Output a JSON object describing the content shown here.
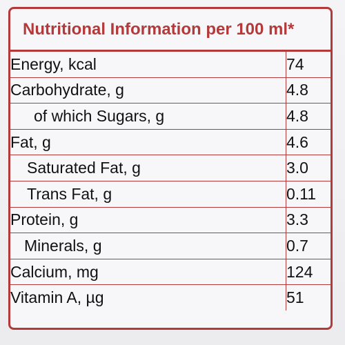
{
  "title": "Nutritional Information per 100 ml*",
  "rows": [
    {
      "label": "Energy, kcal",
      "value": "74"
    },
    {
      "label": "Carbohydrate, g",
      "value": "4.8"
    },
    {
      "label": "of which Sugars, g",
      "value": "4.8"
    },
    {
      "label": "Fat, g",
      "value": "4.6"
    },
    {
      "label": "Saturated Fat, g",
      "value": "3.0"
    },
    {
      "label": "Trans Fat, g",
      "value": "0.11"
    },
    {
      "label": "Protein, g",
      "value": "3.3"
    },
    {
      "label": "Minerals, g",
      "value": "0.7"
    },
    {
      "label": "Calcium, mg",
      "value": "124"
    },
    {
      "label": "Vitamin A, µg",
      "value": "51"
    }
  ],
  "colors": {
    "border": "#b23a3a",
    "text": "#111111",
    "background": "#f7f7f9"
  }
}
